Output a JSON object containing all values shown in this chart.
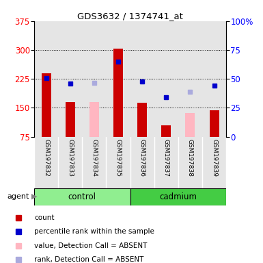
{
  "title": "GDS3632 / 1374741_at",
  "samples": [
    "GSM197832",
    "GSM197833",
    "GSM197834",
    "GSM197835",
    "GSM197836",
    "GSM197837",
    "GSM197838",
    "GSM197839"
  ],
  "bar_values": [
    240,
    165,
    null,
    303,
    163,
    105,
    null,
    143
  ],
  "bar_absent_values": [
    null,
    null,
    165,
    null,
    null,
    null,
    137,
    null
  ],
  "rank_markers": [
    228,
    213,
    null,
    270,
    218,
    178,
    null,
    208
  ],
  "rank_absent_markers": [
    null,
    null,
    215,
    null,
    null,
    null,
    192,
    null
  ],
  "ylim_left": [
    75,
    375
  ],
  "ylim_right": [
    0,
    100
  ],
  "yticks_left": [
    75,
    150,
    225,
    300,
    375
  ],
  "yticks_right": [
    0,
    25,
    50,
    75,
    100
  ],
  "bar_color": "#CC0000",
  "bar_absent_color": "#FFB6C1",
  "rank_color": "#0000CC",
  "rank_absent_color": "#AAAADD",
  "bg_color": "#FFFFFF",
  "sample_bg_color": "#CCCCCC",
  "control_color": "#90EE90",
  "cadmium_color": "#44CC44",
  "legend_items": [
    {
      "label": "count",
      "color": "#CC0000"
    },
    {
      "label": "percentile rank within the sample",
      "color": "#0000CC"
    },
    {
      "label": "value, Detection Call = ABSENT",
      "color": "#FFB6C1"
    },
    {
      "label": "rank, Detection Call = ABSENT",
      "color": "#AAAADD"
    }
  ],
  "bar_width": 0.4,
  "control_indices": [
    0,
    1,
    2,
    3
  ],
  "cadmium_indices": [
    4,
    5,
    6,
    7
  ]
}
